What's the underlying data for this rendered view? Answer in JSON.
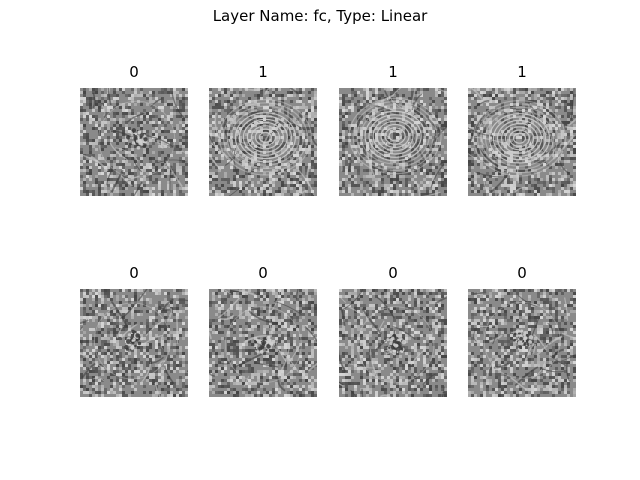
{
  "figure": {
    "title": "Layer Name: fc, Type: Linear"
  },
  "panels": [
    {
      "label": "0",
      "pattern": "center-blob"
    },
    {
      "label": "1",
      "pattern": "concentric-rings"
    },
    {
      "label": "1",
      "pattern": "concentric-rings"
    },
    {
      "label": "1",
      "pattern": "concentric-rings"
    },
    {
      "label": "0",
      "pattern": "center-blob"
    },
    {
      "label": "0",
      "pattern": "center-blob"
    },
    {
      "label": "0",
      "pattern": "center-blob"
    },
    {
      "label": "0",
      "pattern": "center-blob"
    }
  ],
  "colors": {
    "image_mid_gray": "#8a8a8a",
    "image_dark": "#3a3a3a",
    "image_light": "#d0d0d0"
  }
}
